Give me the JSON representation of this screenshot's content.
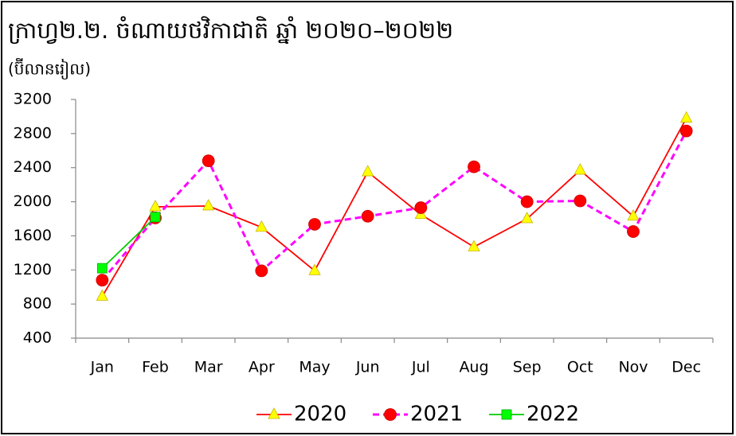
{
  "chart_data": {
    "type": "line",
    "title": "ក្រាហ្វ២.២. ចំណាយថវិកាជាតិ ឆ្នាំ ២០២០–២០២២",
    "subtitle": "(ប៊ីលានរៀល)",
    "categories": [
      "Jan",
      "Feb",
      "Mar",
      "Apr",
      "May",
      "Jun",
      "Jul",
      "Aug",
      "Sep",
      "Oct",
      "Nov",
      "Dec"
    ],
    "series": [
      {
        "name": "2020",
        "color": "#ff0000",
        "marker": "triangle",
        "marker_color": "#ffff00",
        "dashed": false,
        "values": [
          890,
          1940,
          1950,
          1700,
          1190,
          2350,
          1850,
          1470,
          1800,
          2370,
          1830,
          2980
        ]
      },
      {
        "name": "2021",
        "color": "#ff00ff",
        "marker": "circle",
        "marker_color": "#ff0000",
        "dashed": true,
        "values": [
          1080,
          1810,
          2480,
          1190,
          1735,
          1830,
          1930,
          2410,
          2000,
          2010,
          1650,
          2830
        ]
      },
      {
        "name": "2022",
        "color": "#00cc00",
        "marker": "square",
        "marker_color": "#00ff00",
        "dashed": false,
        "values": [
          1220,
          1820,
          null,
          null,
          null,
          null,
          null,
          null,
          null,
          null,
          null,
          null
        ]
      }
    ],
    "ylim": [
      400,
      3200
    ],
    "yticks": [
      400,
      800,
      1200,
      1600,
      2000,
      2400,
      2800,
      3200
    ],
    "grid": false,
    "legend": "bottom"
  }
}
